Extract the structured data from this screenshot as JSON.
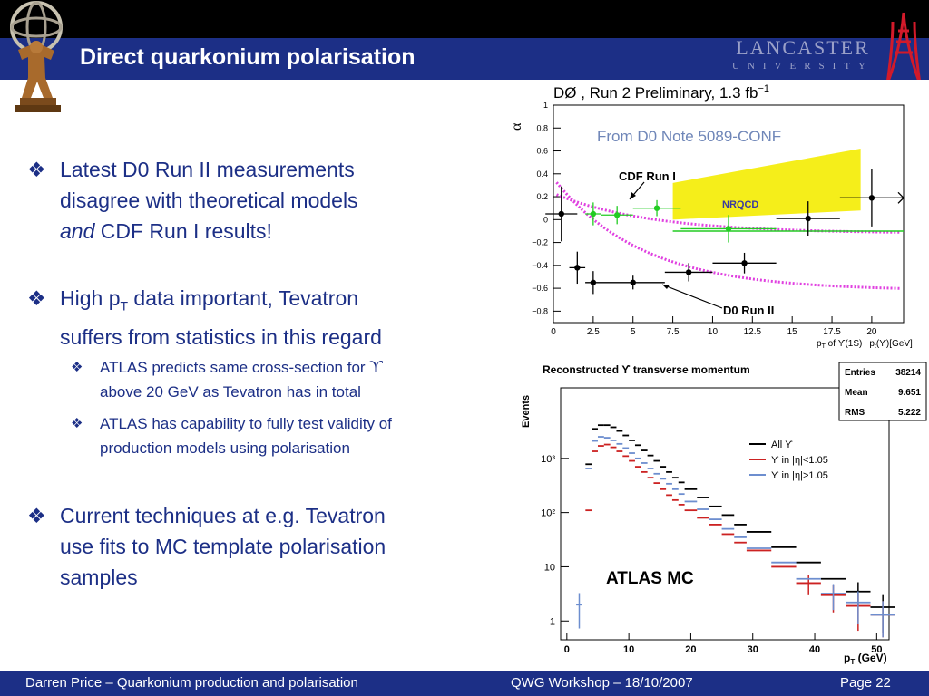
{
  "slide": {
    "title": "Direct quarkonium polarisation",
    "logo_text_1": "LANCASTER",
    "logo_text_2": "UNIVERSITY"
  },
  "bullets": [
    {
      "lines": [
        "Latest D0 Run II measurements",
        "disagree with theoretical models"
      ],
      "line3_italic": "and",
      "line3_rest": " CDF Run I results!"
    },
    {
      "line1_a": "High p",
      "line1_sub": "T",
      "line1_b": " data important, Tevatron",
      "line2": "suffers from statistics in this regard"
    },
    {
      "sub1_a": "ATLAS predicts same cross-section for ",
      "sub1_sym": "ϒ",
      "sub1_l2": "above 20 GeV as Tevatron has in total"
    },
    {
      "sub2_l1": "ATLAS has capability to fully test validity of",
      "sub2_l2": "production models using polarisation"
    },
    {
      "lines": [
        "Current techniques at e.g. Tevatron",
        "use fits to MC template polarisation",
        "samples"
      ]
    }
  ],
  "footer": {
    "left": "Darren Price – Quarkonium production and polarisation",
    "center": "QWG Workshop – 18/10/2007",
    "right": "Page 22"
  },
  "chart_data": [
    {
      "type": "scatter",
      "title": "DØ , Run 2 Preliminary, 1.3 fb",
      "title_sup": "−1",
      "xlabel_a": "p",
      "xlabel_sub": "T",
      "xlabel_b": " of ϒ(1S)",
      "xlabel_c": "p",
      "xlabel_csub": "t",
      "xlabel_d": "(ϒ)[GeV]",
      "ylabel": "α",
      "xlim": [
        0,
        22
      ],
      "ylim": [
        -0.9,
        1.0
      ],
      "x_ticks": [
        "0",
        "2.5",
        "5",
        "7.5",
        "10",
        "12.5",
        "15",
        "17.5",
        "20"
      ],
      "y_ticks": [
        "−0.8",
        "−0.6",
        "−0.4",
        "−0.2",
        "0",
        "0.2",
        "0.4",
        "0.6",
        "0.8",
        "1"
      ],
      "annotations": [
        "From D0 Note 5089-CONF",
        "CDF Run I",
        "NRQCD",
        "D0 Run II"
      ],
      "series": [
        {
          "name": "D0 Run II",
          "color": "#000000",
          "points": [
            {
              "x": 0.5,
              "y": 0.05,
              "xerr": 1.0,
              "yerr": 0.24
            },
            {
              "x": 1.5,
              "y": -0.42,
              "xerr": 0.5,
              "yerr": 0.14
            },
            {
              "x": 2.5,
              "y": -0.55,
              "xerr": 0.5,
              "yerr": 0.1
            },
            {
              "x": 5.0,
              "y": -0.55,
              "xerr": 2.0,
              "yerr": 0.06
            },
            {
              "x": 8.5,
              "y": -0.46,
              "xerr": 1.5,
              "yerr": 0.08
            },
            {
              "x": 12.0,
              "y": -0.38,
              "xerr": 2.0,
              "yerr": 0.09
            },
            {
              "x": 16.0,
              "y": 0.01,
              "xerr": 2.0,
              "yerr": 0.15
            },
            {
              "x": 20.0,
              "y": 0.19,
              "xerr": 2.0,
              "yerr": 0.25
            }
          ]
        },
        {
          "name": "CDF Run I",
          "color": "#22cc22",
          "points": [
            {
              "x": 2.5,
              "y": 0.05,
              "xerr": 0.5,
              "yerr": 0.1
            },
            {
              "x": 4.0,
              "y": 0.04,
              "xerr": 1.0,
              "yerr": 0.08
            },
            {
              "x": 6.5,
              "y": 0.1,
              "xerr": 1.5,
              "yerr": 0.07
            },
            {
              "x": 11.0,
              "y": -0.08,
              "xerr": 3.0,
              "yerr": 0.12
            }
          ]
        }
      ]
    },
    {
      "type": "line",
      "title": "Reconstructed ϒ transverse momentum",
      "ylabel": "Events",
      "xlabel_a": "p",
      "xlabel_sub": "T",
      "xlabel_b": " (GeV)",
      "x_ticks": [
        "0",
        "10",
        "20",
        "30",
        "40",
        "50"
      ],
      "y_ticks": [
        "1",
        "10",
        "10²",
        "10³"
      ],
      "xlim": [
        -1,
        52
      ],
      "y_log_range": [
        0.45,
        20000
      ],
      "stats": [
        {
          "label": "Entries",
          "value": "38214"
        },
        {
          "label": "Mean",
          "value": "9.651"
        },
        {
          "label": "RMS",
          "value": "5.222"
        }
      ],
      "annotation": "ATLAS MC",
      "series": [
        {
          "name": "All ϒ",
          "color": "#000000",
          "x": [
            3.5,
            4.5,
            5.5,
            6.5,
            7.5,
            8.5,
            9.5,
            10.5,
            11.5,
            12.5,
            13.5,
            14.5,
            15.5,
            16.5,
            17.5,
            18.5,
            20,
            22,
            24,
            26,
            28,
            31,
            35,
            39,
            43,
            47,
            51
          ],
          "y": [
            780,
            3500,
            4100,
            4100,
            3750,
            3200,
            2650,
            2150,
            1750,
            1400,
            1130,
            900,
            700,
            560,
            440,
            360,
            270,
            190,
            130,
            90,
            60,
            44,
            23,
            12,
            6,
            3.5,
            1.8
          ]
        },
        {
          "name": "ϒ in |η|<1.05",
          "color": "#cc2222",
          "x": [
            3.5,
            4.5,
            5.5,
            6.5,
            7.5,
            8.5,
            9.5,
            10.5,
            11.5,
            12.5,
            13.5,
            14.5,
            15.5,
            16.5,
            17.5,
            18.5,
            20,
            22,
            24,
            26,
            28,
            31,
            35,
            39,
            43,
            47,
            51
          ],
          "y": [
            110,
            1350,
            1700,
            1800,
            1600,
            1350,
            1100,
            900,
            700,
            560,
            440,
            350,
            270,
            210,
            170,
            140,
            110,
            80,
            60,
            40,
            28,
            20,
            10,
            5,
            3,
            1.9,
            1.3
          ]
        },
        {
          "name": "ϒ in |η|>1.05",
          "color": "#6d8ecf",
          "x": [
            2,
            3.5,
            4.5,
            5.5,
            6.5,
            7.5,
            8.5,
            9.5,
            10.5,
            11.5,
            12.5,
            13.5,
            14.5,
            15.5,
            16.5,
            17.5,
            18.5,
            20,
            22,
            24,
            26,
            28,
            31,
            35,
            39,
            43,
            47,
            51
          ],
          "y": [
            2,
            650,
            2100,
            2500,
            2400,
            2150,
            1850,
            1550,
            1250,
            1000,
            820,
            650,
            520,
            420,
            340,
            270,
            220,
            160,
            115,
            75,
            50,
            35,
            22,
            12,
            6,
            3.2,
            2.2,
            1.3
          ]
        }
      ]
    }
  ]
}
